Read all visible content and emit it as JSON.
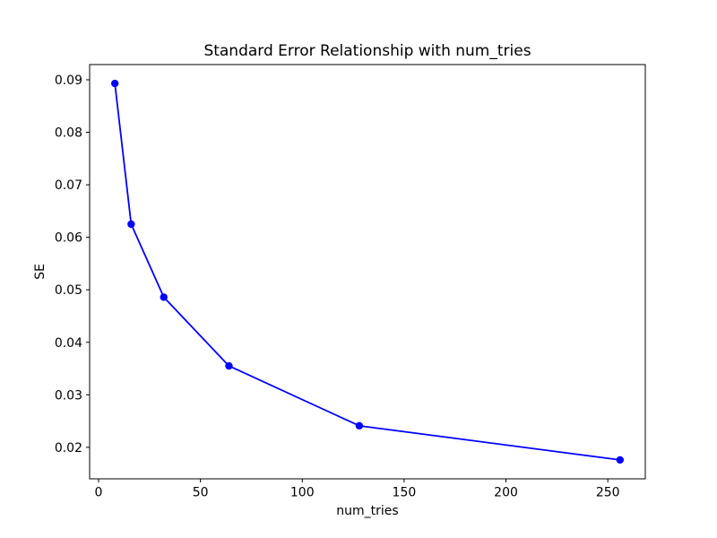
{
  "chart_data": {
    "type": "line",
    "title": "Standard Error Relationship with num_tries",
    "xlabel": "num_tries",
    "ylabel": "SE",
    "x": [
      8,
      16,
      32,
      64,
      128,
      256
    ],
    "y": [
      0.0893,
      0.0625,
      0.0486,
      0.0355,
      0.0241,
      0.0176
    ],
    "xlim": [
      -4.4,
      268.4
    ],
    "ylim": [
      0.014,
      0.0929
    ],
    "xticks": [
      0,
      50,
      100,
      150,
      200,
      250
    ],
    "yticks": [
      0.02,
      0.03,
      0.04,
      0.05,
      0.06,
      0.07,
      0.08,
      0.09
    ],
    "ytick_decimals": 2,
    "grid": false,
    "legend_position": "none",
    "line_color": "#0000ff",
    "marker": "circle",
    "marker_color": "#0000ff",
    "axes_color": "#000000",
    "background_color": "#ffffff"
  }
}
